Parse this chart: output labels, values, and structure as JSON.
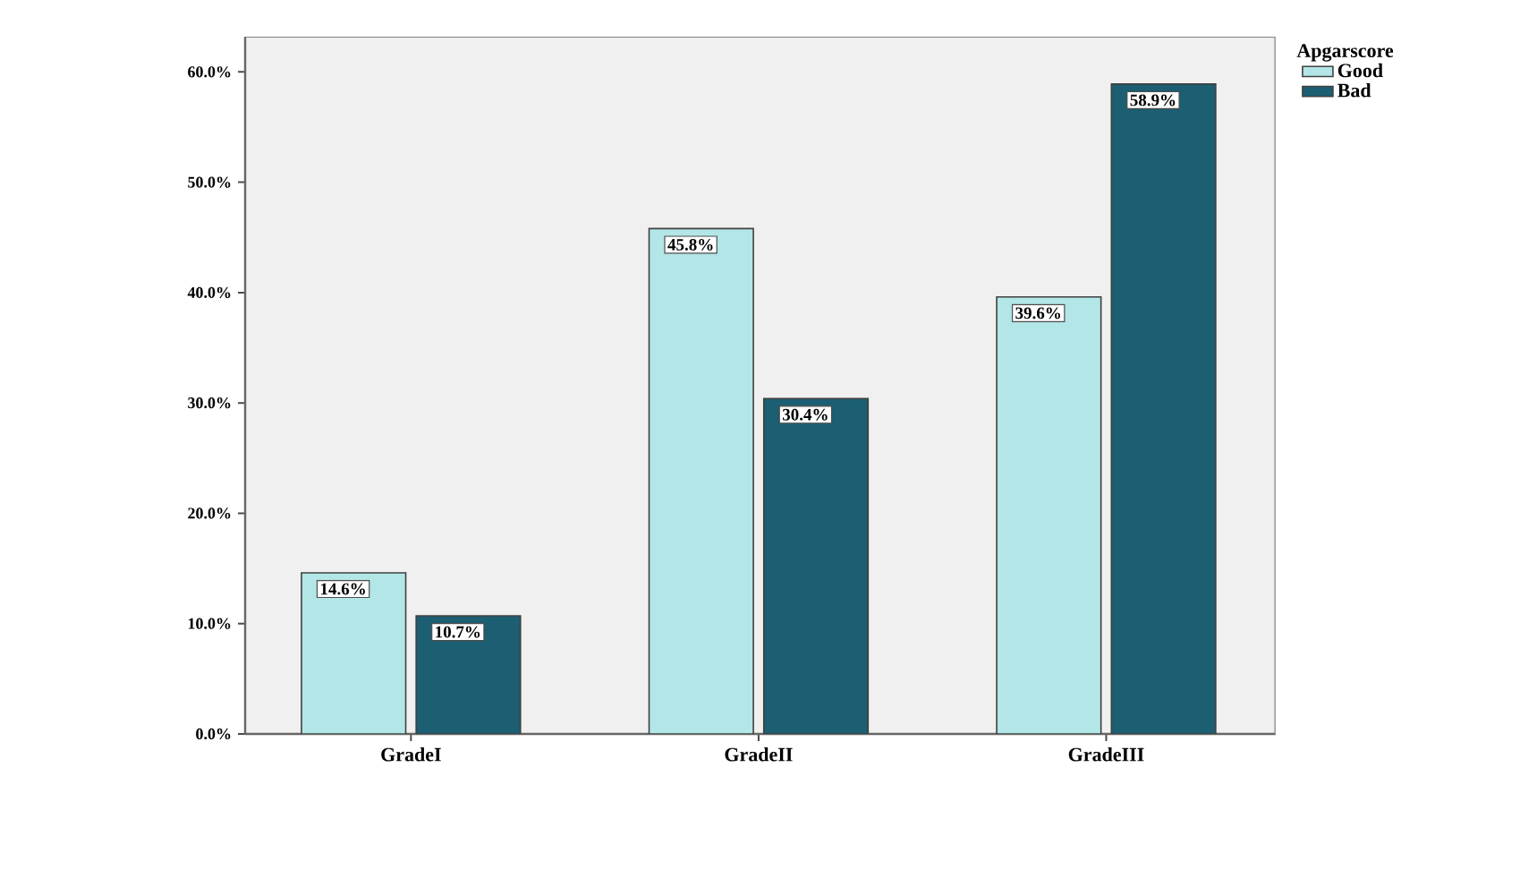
{
  "chart_data": {
    "type": "bar",
    "categories": [
      "GradeI",
      "GradeII",
      "GradeIII"
    ],
    "series": [
      {
        "name": "Good",
        "color": "#b3e6e6",
        "values": [
          14.6,
          45.8,
          39.6
        ],
        "value_labels": [
          "14.6%",
          "45.8%",
          "39.6%"
        ]
      },
      {
        "name": "Bad",
        "color": "#1c5e72",
        "values": [
          10.7,
          30.4,
          58.9
        ],
        "value_labels": [
          "10.7%",
          "30.4%",
          "58.9%"
        ]
      }
    ],
    "legend_title": "Apgarscore",
    "legend": "top right",
    "ylim": [
      0,
      63.2
    ],
    "yticks": [
      {
        "value": 0,
        "label": "0.0%"
      },
      {
        "value": 10,
        "label": "10.0%"
      },
      {
        "value": 20,
        "label": "20.0%"
      },
      {
        "value": 30,
        "label": "30.0%"
      },
      {
        "value": 40,
        "label": "40.0%"
      },
      {
        "value": 50,
        "label": "50.0%"
      },
      {
        "value": 60,
        "label": "60.0%"
      }
    ],
    "grid": false
  }
}
